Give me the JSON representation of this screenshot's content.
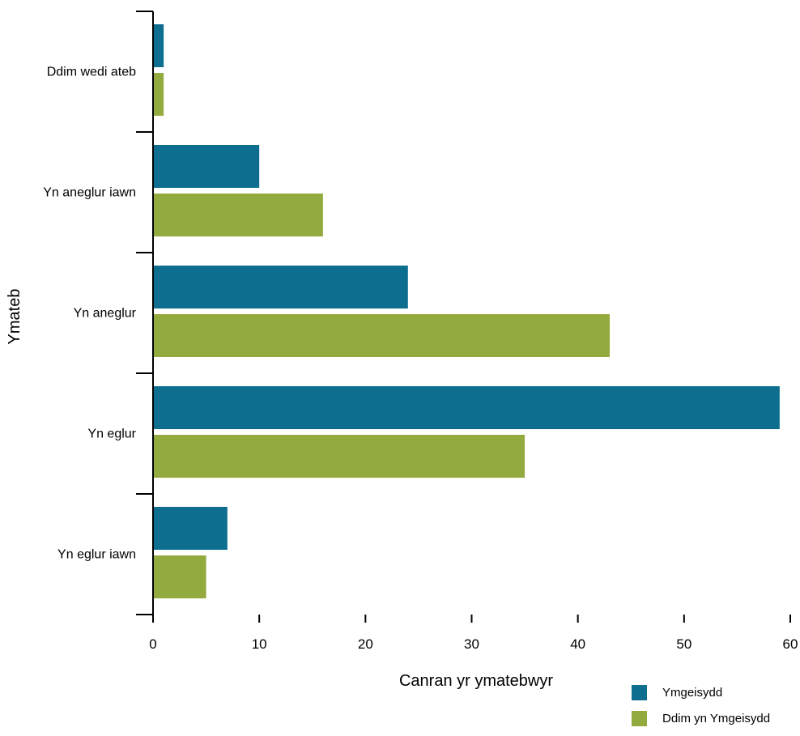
{
  "chart_data": {
    "type": "bar",
    "orientation": "horizontal",
    "xlabel": "Canran yr ymatebwyr",
    "ylabel": "Ymateb",
    "xlim": [
      0,
      60
    ],
    "xticks": [
      0,
      10,
      20,
      30,
      40,
      50,
      60
    ],
    "categories": [
      "Ddim wedi ateb",
      "Yn aneglur iawn",
      "Yn aneglur",
      "Yn eglur",
      "Yn eglur iawn"
    ],
    "series": [
      {
        "name": "Ymgeisydd",
        "color": "#0e6e8f",
        "values": [
          1,
          10,
          24,
          59,
          7
        ]
      },
      {
        "name": "Ddim yn Ymgeisydd",
        "color": "#93aa3e",
        "values": [
          1,
          16,
          43,
          35,
          5
        ]
      }
    ],
    "grid": false,
    "legend_position": "bottom-right"
  }
}
